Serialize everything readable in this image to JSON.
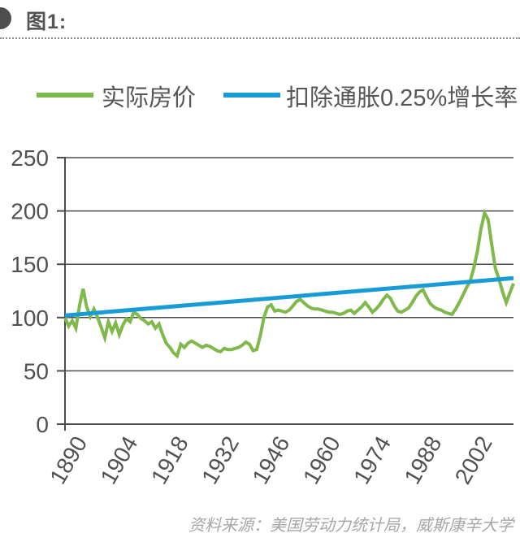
{
  "header": {
    "title": "图1:"
  },
  "legend": {
    "items": [
      {
        "label": "实际房价",
        "color": "#7eb94a"
      },
      {
        "label": "扣除通胀0.25%增长率",
        "color": "#189cd8"
      }
    ]
  },
  "footer": {
    "source": "资料来源：美国劳动力统计局，威斯康辛大学"
  },
  "chart_data": {
    "type": "line",
    "title": "图1:",
    "xlabel": "",
    "ylabel": "",
    "xlim": [
      1890,
      2014
    ],
    "ylim": [
      0,
      250
    ],
    "y_ticks": [
      0,
      50,
      100,
      150,
      200,
      250
    ],
    "x_tick_years": [
      1890,
      1904,
      1918,
      1932,
      1946,
      1960,
      1974,
      1988,
      2002
    ],
    "grid": "horizontal",
    "legend_position": "top",
    "grid_color": "#4d4d4d",
    "axis_color": "#4d4d4d",
    "text_color": "#515151",
    "x_start_year": 1890,
    "series": [
      {
        "name": "实际房价",
        "color": "#7eb94a",
        "width": 4,
        "values": [
          100,
          92,
          97,
          90,
          111,
          127,
          110,
          101,
          108,
          100,
          91,
          81,
          96,
          87,
          95,
          84,
          93,
          99,
          96,
          105,
          103,
          99,
          97,
          94,
          96,
          90,
          94,
          84,
          76,
          72,
          67,
          64,
          75,
          72,
          76,
          78,
          76,
          74,
          72,
          74,
          73,
          71,
          69,
          68,
          71,
          70,
          70,
          71,
          72,
          74,
          77,
          75,
          69,
          70,
          83,
          100,
          110,
          112,
          106,
          107,
          106,
          105,
          107,
          111,
          115,
          117,
          114,
          111,
          109,
          108,
          108,
          107,
          106,
          105,
          105,
          104,
          103,
          104,
          106,
          107,
          104,
          107,
          110,
          114,
          110,
          105,
          108,
          112,
          117,
          121,
          118,
          111,
          106,
          105,
          107,
          109,
          114,
          120,
          124,
          126,
          119,
          113,
          110,
          108,
          107,
          105,
          104,
          103,
          108,
          114,
          121,
          128,
          134,
          146,
          162,
          183,
          198,
          192,
          168,
          146,
          136,
          124,
          114,
          123,
          132
        ]
      },
      {
        "name": "扣除通胀0.25%增长率",
        "color": "#189cd8",
        "width": 5,
        "points": [
          [
            1890,
            102
          ],
          [
            2014,
            137
          ]
        ]
      }
    ]
  }
}
